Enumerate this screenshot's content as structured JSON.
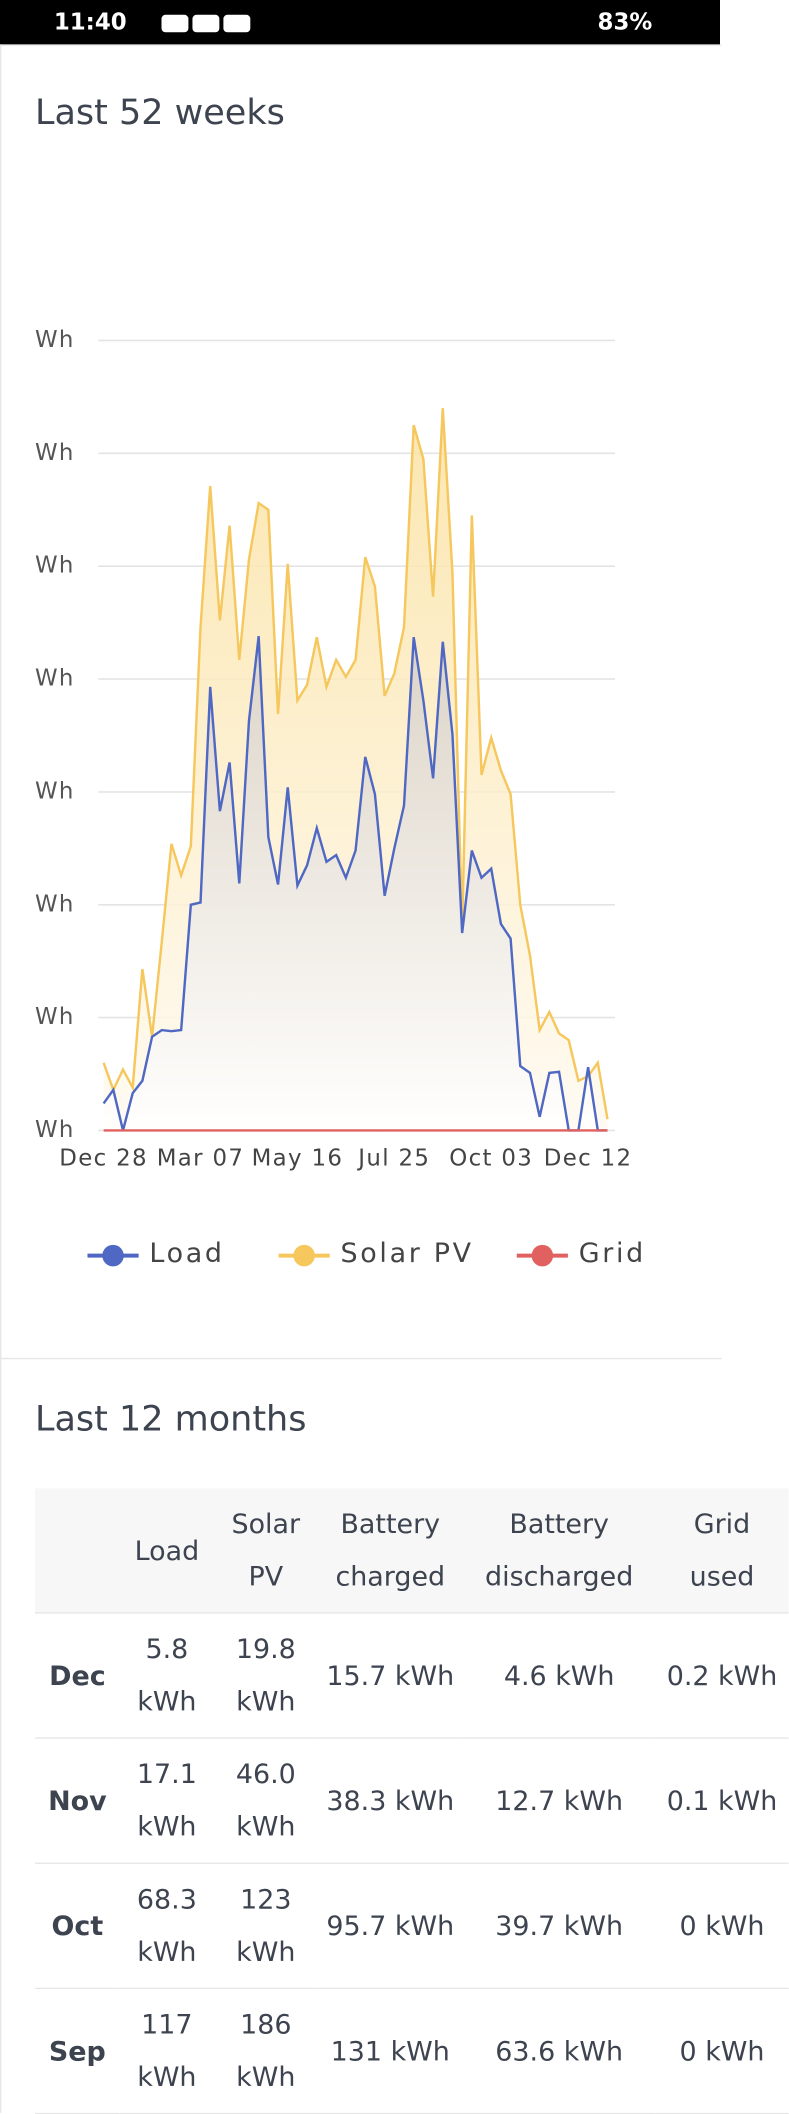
{
  "status_bar": {
    "time": "11:40",
    "battery": "83%"
  },
  "chart_data": {
    "type": "line",
    "title": "Last 52 weeks",
    "categories": [
      "Dec 28",
      null,
      null,
      null,
      null,
      null,
      null,
      null,
      null,
      null,
      "Mar 07",
      null,
      null,
      null,
      null,
      null,
      null,
      null,
      null,
      null,
      "May 16",
      null,
      null,
      null,
      null,
      null,
      null,
      null,
      null,
      null,
      "Jul 25",
      null,
      null,
      null,
      null,
      null,
      null,
      null,
      null,
      null,
      "Oct 03",
      null,
      null,
      null,
      null,
      null,
      null,
      null,
      null,
      null,
      "Dec 12",
      null,
      null
    ],
    "series": [
      {
        "name": "Load",
        "color": "#4f68c3",
        "values": [
          0.24,
          0.36,
          0,
          0.33,
          0.44,
          0.83,
          0.89,
          0.88,
          0.89,
          2.0,
          2.02,
          3.93,
          2.83,
          3.26,
          2.19,
          3.63,
          4.38,
          2.6,
          2.18,
          3.04,
          2.17,
          2.35,
          2.68,
          2.38,
          2.44,
          2.24,
          2.48,
          3.31,
          2.98,
          2.08,
          2.5,
          2.88,
          4.37,
          3.81,
          3.12,
          4.33,
          3.51,
          1.75,
          2.48,
          2.24,
          2.32,
          1.83,
          1.7,
          0.57,
          0.51,
          0.12,
          0.51,
          0.52,
          0,
          0,
          0.56,
          0,
          0
        ]
      },
      {
        "name": "Solar PV",
        "color": "#f5c75d",
        "values": [
          0.6,
          0.36,
          0.54,
          0.38,
          1.43,
          0.83,
          1.67,
          2.54,
          2.26,
          2.52,
          4.46,
          5.71,
          4.52,
          5.36,
          4.17,
          5.06,
          5.56,
          5.5,
          3.69,
          5.02,
          3.81,
          3.95,
          4.37,
          3.93,
          4.17,
          4.02,
          4.17,
          5.08,
          4.82,
          3.85,
          4.05,
          4.46,
          6.25,
          5.95,
          4.73,
          6.4,
          4.94,
          1.79,
          5.45,
          3.15,
          3.48,
          3.19,
          2.98,
          2.0,
          1.55,
          0.89,
          1.05,
          0.86,
          0.8,
          0.44,
          0.48,
          0.6,
          0.1
        ]
      },
      {
        "name": "Grid",
        "color": "#e0615f",
        "values": [
          0,
          0,
          0,
          0,
          0,
          0,
          0,
          0,
          0,
          0,
          0,
          0,
          0,
          0,
          0,
          0,
          0,
          0,
          0,
          0,
          0,
          0,
          0,
          0,
          0,
          0,
          0,
          0,
          0,
          0,
          0,
          0,
          0,
          0,
          0,
          0,
          0,
          0,
          0,
          0,
          0,
          0,
          0,
          0,
          0,
          0,
          0,
          0,
          0,
          0,
          0,
          0,
          0
        ]
      }
    ],
    "ylim": [
      0,
      7
    ],
    "yticks": [
      {
        "value": 0,
        "label": "Wh"
      },
      {
        "value": 1,
        "label": "Wh"
      },
      {
        "value": 2,
        "label": "Wh"
      },
      {
        "value": 3,
        "label": "Wh"
      },
      {
        "value": 4,
        "label": "Wh"
      },
      {
        "value": 5,
        "label": "Wh"
      },
      {
        "value": 6,
        "label": "Wh"
      },
      {
        "value": 7,
        "label": "Wh"
      }
    ],
    "grid": true,
    "legend": "bottom"
  },
  "table": {
    "title": "Last 12 months",
    "columns": [
      "Load",
      "Solar PV",
      "Battery charged",
      "Battery discharged",
      "Grid used"
    ],
    "rows": [
      [
        "Dec",
        "5.8 kWh",
        "19.8 kWh",
        "15.7 kWh",
        "4.6 kWh",
        "0.2 kWh"
      ],
      [
        "Nov",
        "17.1 kWh",
        "46.0 kWh",
        "38.3 kWh",
        "12.7 kWh",
        "0.1 kWh"
      ],
      [
        "Oct",
        "68.3 kWh",
        "123 kWh",
        "95.7 kWh",
        "39.7 kWh",
        "0 kWh"
      ],
      [
        "Sep",
        "117 kWh",
        "186 kWh",
        "131 kWh",
        "63.6 kWh",
        "0 kWh"
      ]
    ]
  }
}
